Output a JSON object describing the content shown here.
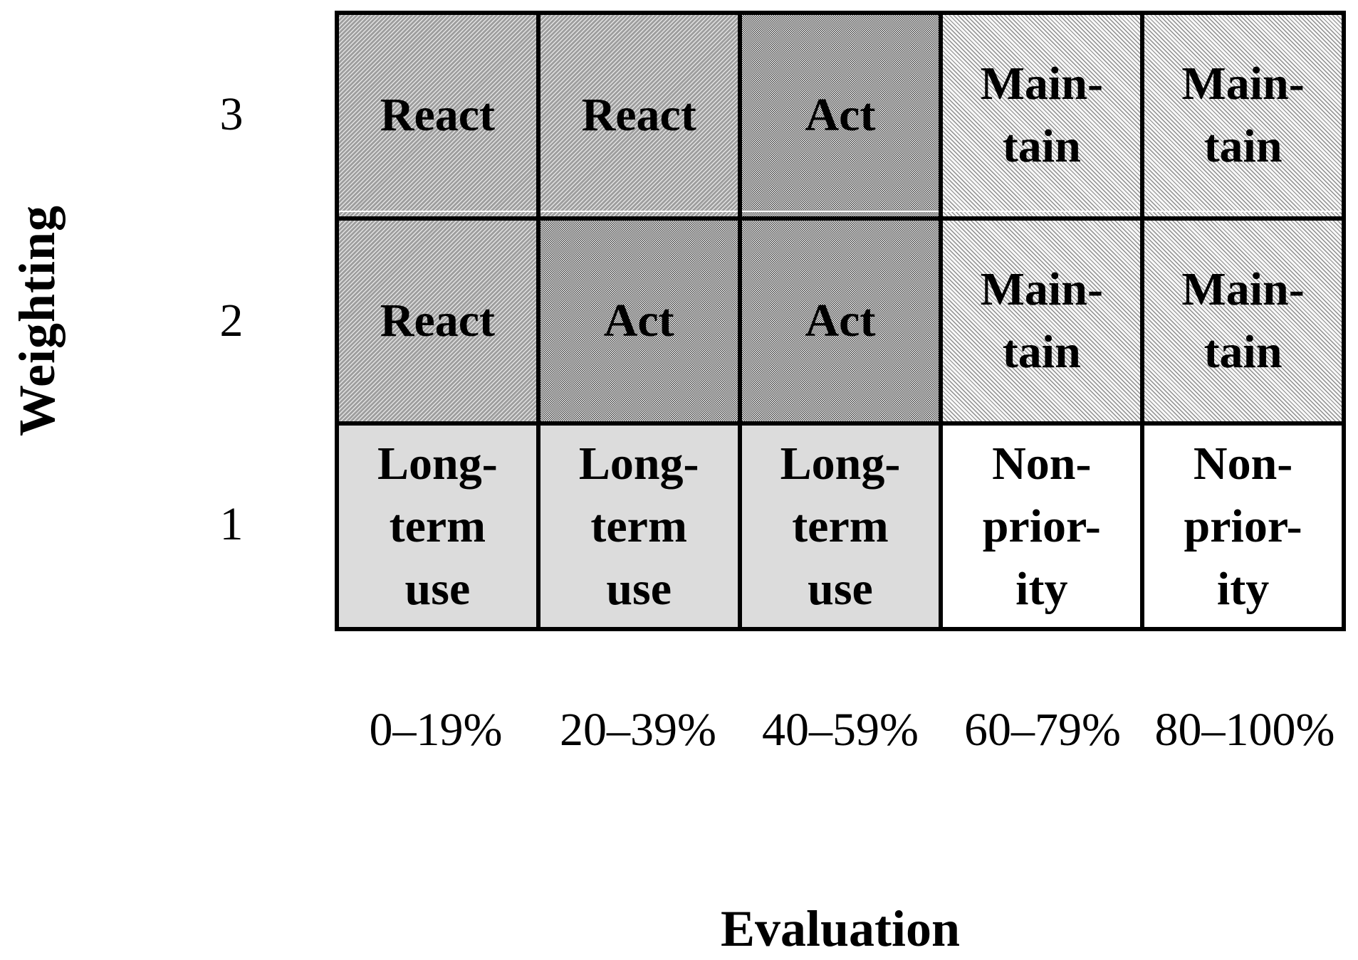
{
  "chart_data": {
    "type": "table",
    "description": "Priority matrix mapping Weighting (1-3) against Evaluation score ranges to recommended actions",
    "x_axis": {
      "label": "Evaluation",
      "categories": [
        "0–19%",
        "20–39%",
        "40–59%",
        "60–79%",
        "80–100%"
      ]
    },
    "y_axis": {
      "label": "Weighting",
      "categories": [
        "3",
        "2",
        "1"
      ]
    },
    "cells": [
      [
        "React",
        "React",
        "Act",
        "Maintain",
        "Maintain"
      ],
      [
        "React",
        "Act",
        "Act",
        "Maintain",
        "Maintain"
      ],
      [
        "Long-term use",
        "Long-term use",
        "Long-term use",
        "Non-priority",
        "Non-priority"
      ]
    ],
    "cell_display": [
      [
        "React",
        "React",
        "Act",
        "Main-\ntain",
        "Main-\ntain"
      ],
      [
        "React",
        "Act",
        "Act",
        "Main-\ntain",
        "Main-\ntain"
      ],
      [
        "Long-\nterm\nuse",
        "Long-\nterm\nuse",
        "Long-\nterm\nuse",
        "Non-\nprior-\nity",
        "Non-\nprior-\nity"
      ]
    ],
    "legend_position": "none",
    "grid": "on"
  },
  "colors": {
    "border": "#000000",
    "text": "#000000",
    "react_stripe_dark": "#9e9e9e",
    "react_stripe_light": "#e3e3e3",
    "act_dot": "#414141",
    "act_background": "#fbfbfb",
    "maintain_stripe": "#8f8f8f",
    "maintain_background": "#f7f7f7",
    "longterm_background": "#dcdcdc",
    "nonpriority_background": "#ffffff",
    "page_background": "#ffffff"
  }
}
